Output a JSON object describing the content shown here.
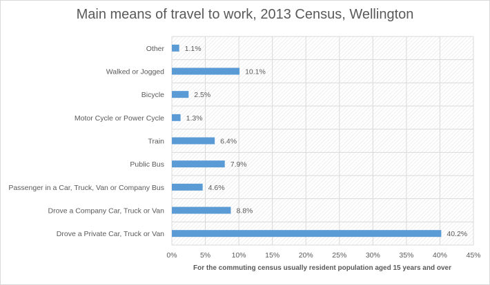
{
  "chart_data": {
    "type": "bar",
    "orientation": "horizontal",
    "title": "Main means of travel to work, 2013 Census, Wellington",
    "xlabel": "For the commuting census usually resident population aged 15 years and over",
    "ylabel": "",
    "categories": [
      "Other",
      "Walked or Jogged",
      "Bicycle",
      "Motor Cycle or Power Cycle",
      "Train",
      "Public Bus",
      "Passenger in a Car, Truck, Van or Company Bus",
      "Drove a Company Car, Truck or Van",
      "Drove a Private Car, Truck or Van"
    ],
    "values": [
      1.1,
      10.1,
      2.5,
      1.3,
      6.4,
      7.9,
      4.6,
      8.8,
      40.2
    ],
    "data_labels": [
      "1.1%",
      "10.1%",
      "2.5%",
      "1.3%",
      "6.4%",
      "7.9%",
      "4.6%",
      "8.8%",
      "40.2%"
    ],
    "xlim": [
      0,
      45
    ],
    "xticks": [
      0,
      5,
      10,
      15,
      20,
      25,
      30,
      35,
      40,
      45
    ],
    "xtick_labels": [
      "0%",
      "5%",
      "10%",
      "15%",
      "20%",
      "25%",
      "30%",
      "35%",
      "40%",
      "45%"
    ],
    "grid": true,
    "legend": "none",
    "colors": {
      "bar": "#5b9bd5",
      "grid": "#d9d9d9",
      "text": "#595959"
    }
  }
}
